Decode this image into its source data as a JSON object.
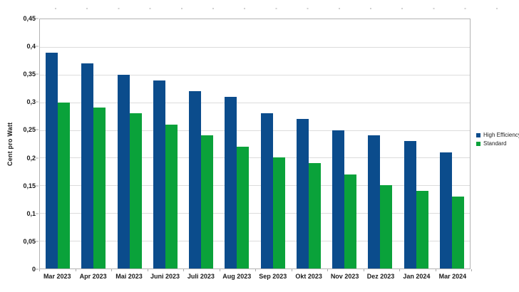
{
  "chart_data": {
    "type": "bar",
    "title": "",
    "xlabel": "",
    "ylabel": "Cent pro Watt",
    "categories": [
      "Mar 2023",
      "Apr 2023",
      "Mai 2023",
      "Juni 2023",
      "Juli 2023",
      "Aug 2023",
      "Sep 2023",
      "Okt 2023",
      "Nov 2023",
      "Dez 2023",
      "Jan 2024",
      "Mar 2024"
    ],
    "series": [
      {
        "name": "High Efficiency",
        "color": "#0b4c8c",
        "values": [
          0.39,
          0.37,
          0.35,
          0.34,
          0.32,
          0.31,
          0.28,
          0.27,
          0.25,
          0.24,
          0.23,
          0.21
        ]
      },
      {
        "name": "Standard",
        "color": "#0aa23a",
        "values": [
          0.3,
          0.29,
          0.28,
          0.26,
          0.24,
          0.22,
          0.2,
          0.19,
          0.17,
          0.15,
          0.14,
          0.13
        ]
      }
    ],
    "ylim": [
      0,
      0.45
    ],
    "ytick_step": 0.05,
    "ytick_values": [
      0,
      0.05,
      0.1,
      0.15,
      0.2,
      0.25,
      0.3,
      0.35,
      0.4,
      0.45
    ],
    "ytick_labels": [
      "0",
      "0,05",
      "0,1",
      "0,15",
      "0,2",
      "0,25",
      "0,3",
      "0,35",
      "0,4",
      "0,45"
    ],
    "grid": "horizontal",
    "legend_position": "right",
    "colors": {
      "gridline": "#dcdcdc",
      "axis": "#b3b3b3",
      "label_text": "#1a1a1a"
    }
  }
}
